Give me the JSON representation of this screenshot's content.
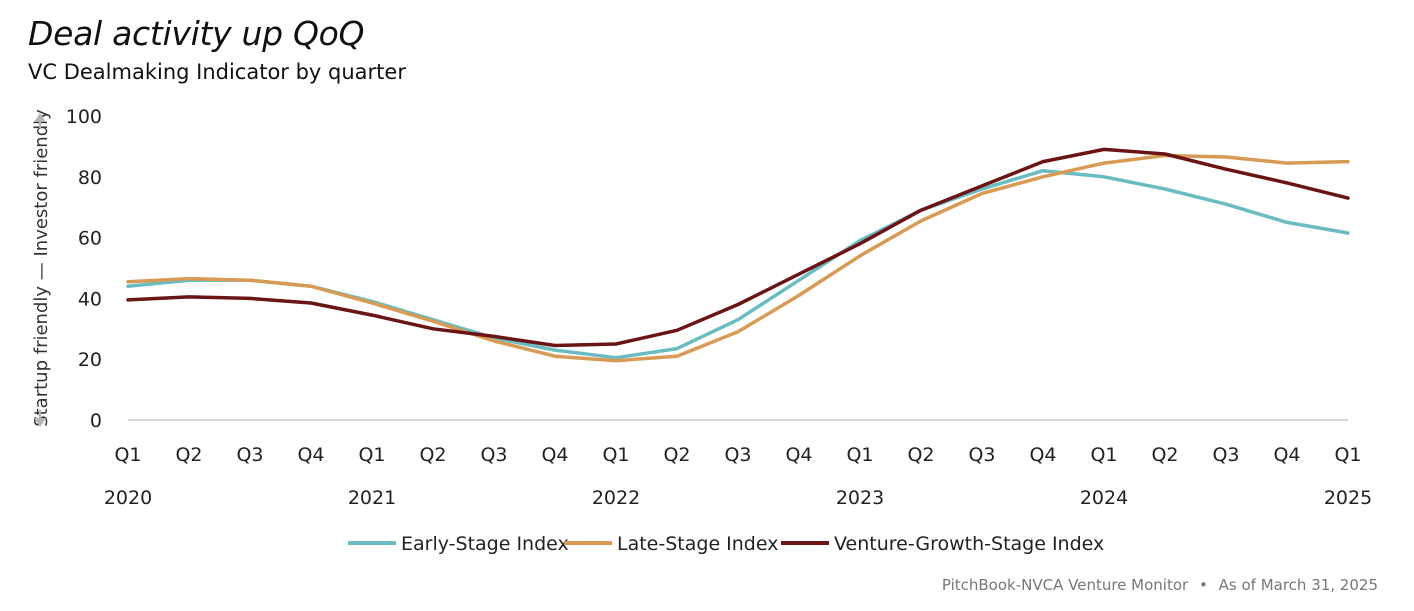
{
  "header": {
    "title": "Deal activity up QoQ",
    "subtitle": "VC Dealmaking Indicator by quarter"
  },
  "footer": {
    "source": "PitchBook-NVCA Venture Monitor",
    "separator": "•",
    "as_of": "As of March 31, 2025"
  },
  "chart_data": {
    "type": "line",
    "ylabel_low": "Startup friendly",
    "ylabel_sep": "—",
    "ylabel_high": "Investor friendly",
    "ylim": [
      0,
      100
    ],
    "yticks": [
      0,
      20,
      40,
      60,
      80,
      100
    ],
    "grid": false,
    "legend_position": "bottom-center",
    "quarters": [
      "Q1",
      "Q2",
      "Q3",
      "Q4",
      "Q1",
      "Q2",
      "Q3",
      "Q4",
      "Q1",
      "Q2",
      "Q3",
      "Q4",
      "Q1",
      "Q2",
      "Q3",
      "Q4",
      "Q1",
      "Q2",
      "Q3",
      "Q4",
      "Q1"
    ],
    "years": [
      {
        "label": "2020",
        "index": 0
      },
      {
        "label": "2021",
        "index": 4
      },
      {
        "label": "2022",
        "index": 8
      },
      {
        "label": "2023",
        "index": 12
      },
      {
        "label": "2024",
        "index": 16
      },
      {
        "label": "2025",
        "index": 20
      }
    ],
    "series": [
      {
        "name": "Early-Stage Index",
        "color": "#6bbcc2",
        "values": [
          44,
          46,
          46,
          44,
          39,
          33,
          27,
          23,
          20.5,
          23.5,
          33,
          46,
          59,
          69,
          76,
          82,
          80,
          76,
          71,
          65,
          61.5
        ]
      },
      {
        "name": "Late-Stage Index",
        "color": "#d89a55",
        "values": [
          45.5,
          46.5,
          46,
          44,
          38.5,
          32.5,
          26,
          21,
          19.5,
          21,
          29,
          41,
          54,
          65.5,
          74.5,
          80,
          84.5,
          87,
          86.5,
          84.5,
          85
        ]
      },
      {
        "name": "Venture-Growth-Stage Index",
        "color": "#6b1416",
        "values": [
          39.5,
          40.5,
          40,
          38.5,
          34.5,
          30,
          27.5,
          24.5,
          25,
          29.5,
          38,
          48,
          58,
          69,
          77,
          85,
          89,
          87.5,
          82.5,
          78,
          73
        ]
      }
    ]
  }
}
